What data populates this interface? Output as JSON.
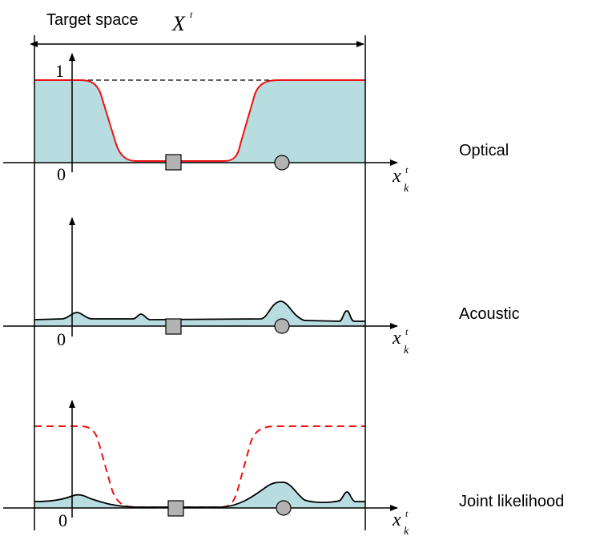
{
  "header": {
    "label": "Target space",
    "symbol": "X",
    "symbol_sup": "t"
  },
  "axis": {
    "var": "x",
    "var_sub": "k",
    "var_sup": "t",
    "zero": "0",
    "one": "1"
  },
  "panels": [
    {
      "label": "Optical"
    },
    {
      "label": "Acoustic"
    },
    {
      "label": "Joint likelihood"
    }
  ],
  "colors": {
    "fill": "#b8dde0",
    "optical_curve": "#ee1111",
    "curve": "#000000",
    "marker_fill": "#b3b3b3"
  },
  "markers": [
    "square-marker",
    "circle-marker"
  ]
}
